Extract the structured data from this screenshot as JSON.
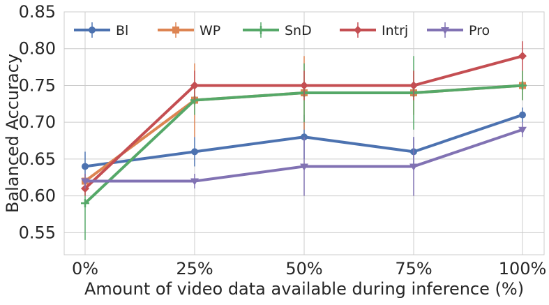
{
  "chart_data": {
    "type": "line",
    "title": "",
    "xlabel": "Amount of video data available during inference (%)",
    "ylabel": "Balanced Accuracy",
    "categories": [
      "0%",
      "25%",
      "50%",
      "75%",
      "100%"
    ],
    "ylim": [
      0.52,
      0.85
    ],
    "yticks": [
      "0.55",
      "0.60",
      "0.65",
      "0.70",
      "0.75",
      "0.80",
      "0.85"
    ],
    "grid": true,
    "legend_placement": "top, inside, single row",
    "series": [
      {
        "name": "Bl",
        "color": "#4c72b0",
        "marker": "circle",
        "values": [
          0.64,
          0.66,
          0.68,
          0.66,
          0.71
        ],
        "err_low": [
          0.62,
          0.64,
          0.65,
          0.64,
          0.7
        ],
        "err_high": [
          0.66,
          0.68,
          0.71,
          0.68,
          0.72
        ]
      },
      {
        "name": "WP",
        "color": "#dd8452",
        "marker": "square",
        "values": [
          0.62,
          0.73,
          0.74,
          0.74,
          0.75
        ],
        "err_low": [
          0.61,
          0.68,
          0.69,
          0.71,
          0.73
        ],
        "err_high": [
          0.63,
          0.78,
          0.79,
          0.77,
          0.77
        ]
      },
      {
        "name": "SnD",
        "color": "#55a868",
        "marker": "plus",
        "values": [
          0.59,
          0.73,
          0.74,
          0.74,
          0.75
        ],
        "err_low": [
          0.54,
          0.71,
          0.7,
          0.69,
          0.73
        ],
        "err_high": [
          0.62,
          0.75,
          0.78,
          0.79,
          0.77
        ]
      },
      {
        "name": "Intrj",
        "color": "#c44e52",
        "marker": "diamond",
        "values": [
          0.61,
          0.75,
          0.75,
          0.75,
          0.79
        ],
        "err_low": [
          0.6,
          0.73,
          0.73,
          0.73,
          0.77
        ],
        "err_high": [
          0.62,
          0.77,
          0.77,
          0.77,
          0.81
        ]
      },
      {
        "name": "Pro",
        "color": "#8172b3",
        "marker": "triangle-down",
        "values": [
          0.62,
          0.62,
          0.64,
          0.64,
          0.69
        ],
        "err_low": [
          0.61,
          0.61,
          0.6,
          0.6,
          0.68
        ],
        "err_high": [
          0.63,
          0.63,
          0.68,
          0.68,
          0.7
        ]
      }
    ]
  }
}
